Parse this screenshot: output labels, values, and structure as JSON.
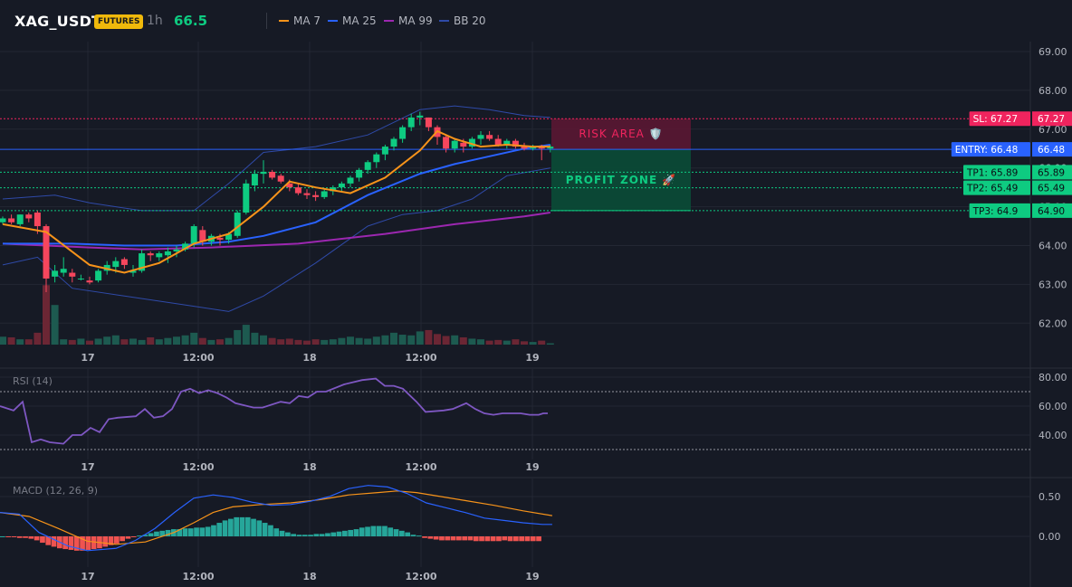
{
  "header": {
    "symbol": "XAG_USDT",
    "badge": "FUTURES",
    "timeframe": "1h",
    "price": "66.5",
    "legend": [
      {
        "label": "MA 7",
        "color": "#f7931a"
      },
      {
        "label": "MA 25",
        "color": "#2962ff"
      },
      {
        "label": "MA 99",
        "color": "#9c27b0"
      },
      {
        "label": "BB 20",
        "color": "#2f4aa8"
      }
    ]
  },
  "colors": {
    "up": "#0ecb81",
    "down": "#f6465d",
    "rsi": "#7e57c2",
    "macd": "#2962ff",
    "signal": "#f7931a",
    "hist_up": "#26a69a",
    "hist_down": "#ef5350",
    "risk": "#f0245e",
    "profit": "#0ecb81",
    "entry": "#2962ff"
  },
  "chart_data": [
    {
      "type": "candlestick",
      "title": "XAG_USDT 1h",
      "ylim": [
        61.6,
        69.2
      ],
      "yticks": [
        "69.00",
        "68.00",
        "67.00",
        "66.00",
        "65.00",
        "64.00",
        "63.00",
        "62.00"
      ],
      "xticks": [
        "17",
        "12:00",
        "18",
        "12:00",
        "19"
      ],
      "ohlc": [
        [
          64.6,
          64.75,
          64.55,
          64.7
        ],
        [
          64.7,
          64.8,
          64.55,
          64.6
        ],
        [
          64.55,
          64.8,
          64.5,
          64.8
        ],
        [
          64.8,
          64.85,
          64.6,
          64.7
        ],
        [
          64.85,
          64.9,
          64.3,
          64.5
        ],
        [
          64.5,
          64.55,
          62.8,
          63.15
        ],
        [
          63.2,
          63.5,
          63.05,
          63.35
        ],
        [
          63.3,
          63.7,
          63.2,
          63.4
        ],
        [
          63.3,
          63.4,
          63.05,
          63.2
        ],
        [
          63.15,
          63.25,
          63.1,
          63.15
        ],
        [
          63.1,
          63.2,
          63.0,
          63.05
        ],
        [
          63.1,
          63.4,
          63.05,
          63.35
        ],
        [
          63.35,
          63.6,
          63.25,
          63.5
        ],
        [
          63.45,
          63.7,
          63.3,
          63.6
        ],
        [
          63.65,
          63.7,
          63.4,
          63.5
        ],
        [
          63.3,
          63.5,
          63.2,
          63.35
        ],
        [
          63.35,
          63.9,
          63.3,
          63.8
        ],
        [
          63.8,
          63.85,
          63.6,
          63.75
        ],
        [
          63.7,
          63.85,
          63.6,
          63.8
        ],
        [
          63.75,
          63.95,
          63.55,
          63.85
        ],
        [
          63.85,
          64.0,
          63.7,
          63.9
        ],
        [
          63.9,
          64.1,
          63.85,
          64.05
        ],
        [
          64.05,
          64.55,
          63.95,
          64.5
        ],
        [
          64.4,
          64.5,
          64.0,
          64.1
        ],
        [
          64.1,
          64.3,
          64.0,
          64.25
        ],
        [
          64.2,
          64.3,
          64.0,
          64.15
        ],
        [
          64.15,
          64.35,
          64.05,
          64.3
        ],
        [
          64.25,
          64.9,
          64.2,
          64.85
        ],
        [
          64.85,
          65.7,
          64.8,
          65.6
        ],
        [
          65.55,
          65.95,
          65.4,
          65.85
        ],
        [
          65.85,
          66.2,
          65.6,
          65.9
        ],
        [
          65.9,
          65.95,
          65.7,
          65.75
        ],
        [
          65.8,
          65.85,
          65.6,
          65.65
        ],
        [
          65.6,
          65.7,
          65.4,
          65.5
        ],
        [
          65.5,
          65.6,
          65.3,
          65.35
        ],
        [
          65.35,
          65.45,
          65.2,
          65.3
        ],
        [
          65.3,
          65.4,
          65.15,
          65.25
        ],
        [
          65.25,
          65.45,
          65.2,
          65.4
        ],
        [
          65.4,
          65.55,
          65.3,
          65.5
        ],
        [
          65.5,
          65.65,
          65.4,
          65.6
        ],
        [
          65.6,
          65.8,
          65.5,
          65.75
        ],
        [
          65.75,
          66.0,
          65.65,
          65.95
        ],
        [
          65.95,
          66.2,
          65.85,
          66.15
        ],
        [
          66.15,
          66.4,
          66.0,
          66.35
        ],
        [
          66.35,
          66.6,
          66.2,
          66.55
        ],
        [
          66.55,
          66.8,
          66.45,
          66.75
        ],
        [
          66.75,
          67.1,
          66.65,
          67.05
        ],
        [
          67.05,
          67.4,
          66.95,
          67.3
        ],
        [
          67.3,
          67.45,
          67.1,
          67.35
        ],
        [
          67.3,
          67.3,
          66.95,
          67.05
        ],
        [
          67.05,
          67.1,
          66.6,
          66.8
        ],
        [
          66.8,
          66.85,
          66.4,
          66.5
        ],
        [
          66.5,
          66.75,
          66.4,
          66.7
        ],
        [
          66.65,
          66.75,
          66.4,
          66.55
        ],
        [
          66.55,
          66.8,
          66.5,
          66.75
        ],
        [
          66.75,
          66.95,
          66.6,
          66.85
        ],
        [
          66.85,
          66.95,
          66.7,
          66.75
        ],
        [
          66.75,
          66.85,
          66.55,
          66.6
        ],
        [
          66.6,
          66.75,
          66.5,
          66.7
        ],
        [
          66.7,
          66.75,
          66.5,
          66.55
        ],
        [
          66.55,
          66.65,
          66.45,
          66.5
        ],
        [
          66.5,
          66.6,
          66.45,
          66.55
        ],
        [
          66.55,
          66.6,
          66.2,
          66.5
        ],
        [
          66.5,
          66.6,
          66.4,
          66.55
        ]
      ],
      "volume": [
        12,
        11,
        8,
        8,
        18,
        90,
        60,
        8,
        7,
        9,
        6,
        9,
        12,
        14,
        8,
        9,
        7,
        11,
        8,
        10,
        12,
        14,
        18,
        10,
        7,
        8,
        10,
        22,
        30,
        18,
        14,
        10,
        8,
        9,
        7,
        6,
        8,
        7,
        8,
        10,
        12,
        10,
        9,
        12,
        14,
        18,
        15,
        14,
        20,
        22,
        16,
        13,
        14,
        11,
        9,
        8,
        6,
        7,
        6,
        8,
        5,
        4,
        6,
        2
      ],
      "ma7": [
        [
          0,
          64.55
        ],
        [
          5,
          64.35
        ],
        [
          10,
          63.5
        ],
        [
          14,
          63.3
        ],
        [
          18,
          63.55
        ],
        [
          22,
          64.05
        ],
        [
          26,
          64.3
        ],
        [
          30,
          65.0
        ],
        [
          33,
          65.65
        ],
        [
          36,
          65.5
        ],
        [
          40,
          65.35
        ],
        [
          44,
          65.75
        ],
        [
          48,
          66.45
        ],
        [
          50,
          66.95
        ],
        [
          52,
          66.75
        ],
        [
          55,
          66.55
        ],
        [
          58,
          66.6
        ],
        [
          61,
          66.55
        ],
        [
          63,
          66.55
        ]
      ],
      "ma25": [
        [
          0,
          64.05
        ],
        [
          8,
          64.05
        ],
        [
          14,
          64.0
        ],
        [
          20,
          64.0
        ],
        [
          26,
          64.1
        ],
        [
          30,
          64.25
        ],
        [
          36,
          64.6
        ],
        [
          42,
          65.3
        ],
        [
          48,
          65.85
        ],
        [
          52,
          66.1
        ],
        [
          56,
          66.3
        ],
        [
          60,
          66.5
        ],
        [
          63,
          66.6
        ]
      ],
      "ma99": [
        [
          0,
          64.05
        ],
        [
          10,
          63.95
        ],
        [
          16,
          63.9
        ],
        [
          24,
          63.95
        ],
        [
          34,
          64.05
        ],
        [
          44,
          64.3
        ],
        [
          52,
          64.55
        ],
        [
          60,
          64.75
        ],
        [
          63,
          64.85
        ]
      ],
      "bb_upper": [
        [
          0,
          65.2
        ],
        [
          6,
          65.3
        ],
        [
          10,
          65.1
        ],
        [
          16,
          64.9
        ],
        [
          22,
          64.9
        ],
        [
          26,
          65.6
        ],
        [
          30,
          66.4
        ],
        [
          36,
          66.55
        ],
        [
          42,
          66.85
        ],
        [
          48,
          67.5
        ],
        [
          52,
          67.6
        ],
        [
          56,
          67.5
        ],
        [
          60,
          67.35
        ],
        [
          63,
          67.3
        ]
      ],
      "bb_lower": [
        [
          0,
          63.5
        ],
        [
          4,
          63.7
        ],
        [
          8,
          62.9
        ],
        [
          14,
          62.7
        ],
        [
          20,
          62.5
        ],
        [
          26,
          62.3
        ],
        [
          30,
          62.7
        ],
        [
          36,
          63.55
        ],
        [
          42,
          64.5
        ],
        [
          46,
          64.8
        ],
        [
          50,
          64.9
        ],
        [
          54,
          65.2
        ],
        [
          58,
          65.8
        ],
        [
          63,
          66.0
        ]
      ],
      "levels": [
        {
          "label": "SL: 67.27",
          "value": 67.27,
          "axis_label": "67.27"
        },
        {
          "label": "ENTRY: 66.48",
          "value": 66.48,
          "axis_label": "66.48"
        },
        {
          "label": "TP1: 65.89",
          "value": 65.89,
          "axis_label": "65.89"
        },
        {
          "label": "TP2: 65.49",
          "value": 65.49,
          "axis_label": "65.49"
        },
        {
          "label": "TP3: 64.9",
          "value": 64.9,
          "axis_label": "64.90"
        }
      ],
      "zones": [
        {
          "label": "RISK AREA 🛡️",
          "from": 67.27,
          "to": 66.48
        },
        {
          "label": "PROFIT ZONE 🚀",
          "from": 66.48,
          "to": 64.9
        }
      ]
    },
    {
      "type": "line",
      "title": "RSI (14)",
      "ylim": [
        30,
        85
      ],
      "yticks": [
        "80.00",
        "60.00",
        "40.00"
      ],
      "bands": [
        70,
        30
      ],
      "xticks": [
        "17",
        "12:00",
        "18",
        "12:00",
        "19"
      ],
      "values": [
        [
          0,
          60
        ],
        [
          3,
          57
        ],
        [
          5,
          63
        ],
        [
          7,
          35
        ],
        [
          9,
          37
        ],
        [
          11,
          35
        ],
        [
          14,
          34
        ],
        [
          16,
          40
        ],
        [
          18,
          40
        ],
        [
          20,
          45
        ],
        [
          22,
          42
        ],
        [
          24,
          51
        ],
        [
          26,
          52
        ],
        [
          30,
          53
        ],
        [
          32,
          58
        ],
        [
          34,
          52
        ],
        [
          36,
          53
        ],
        [
          38,
          58
        ],
        [
          40,
          70
        ],
        [
          42,
          72
        ],
        [
          44,
          69
        ],
        [
          46,
          71
        ],
        [
          48,
          69
        ],
        [
          50,
          66
        ],
        [
          52,
          62
        ],
        [
          56,
          59
        ],
        [
          58,
          59
        ],
        [
          62,
          63
        ],
        [
          64,
          62
        ],
        [
          66,
          67
        ],
        [
          68,
          66
        ],
        [
          70,
          70
        ],
        [
          72,
          70
        ],
        [
          76,
          75
        ],
        [
          80,
          78
        ],
        [
          83,
          79
        ],
        [
          85,
          74
        ],
        [
          87,
          74
        ],
        [
          89,
          72
        ],
        [
          92,
          63
        ],
        [
          94,
          56
        ],
        [
          98,
          57
        ],
        [
          100,
          58
        ],
        [
          103,
          62
        ],
        [
          105,
          58
        ],
        [
          107,
          55
        ],
        [
          109,
          54
        ],
        [
          111,
          55
        ],
        [
          113,
          55
        ],
        [
          115,
          55
        ],
        [
          117,
          54
        ],
        [
          119,
          54
        ],
        [
          120,
          55
        ],
        [
          121,
          55
        ]
      ]
    },
    {
      "type": "bar",
      "title": "MACD (12, 26, 9)",
      "ylim": [
        -0.22,
        0.62
      ],
      "yticks": [
        "0.50",
        "0.00"
      ],
      "xticks": [
        "17",
        "12:00",
        "18",
        "12:00",
        "19"
      ],
      "histogram": [
        0.0,
        -0.01,
        -0.01,
        -0.02,
        -0.02,
        -0.03,
        -0.05,
        -0.08,
        -0.11,
        -0.13,
        -0.15,
        -0.16,
        -0.17,
        -0.18,
        -0.18,
        -0.17,
        -0.16,
        -0.15,
        -0.13,
        -0.11,
        -0.09,
        -0.06,
        -0.03,
        -0.01,
        0.01,
        0.02,
        0.04,
        0.06,
        0.07,
        0.08,
        0.09,
        0.09,
        0.1,
        0.1,
        0.11,
        0.11,
        0.12,
        0.14,
        0.17,
        0.2,
        0.22,
        0.24,
        0.24,
        0.24,
        0.22,
        0.2,
        0.17,
        0.14,
        0.1,
        0.07,
        0.05,
        0.03,
        0.02,
        0.02,
        0.02,
        0.03,
        0.03,
        0.04,
        0.05,
        0.06,
        0.07,
        0.08,
        0.09,
        0.11,
        0.12,
        0.13,
        0.13,
        0.13,
        0.11,
        0.09,
        0.07,
        0.05,
        0.02,
        0.01,
        -0.02,
        -0.03,
        -0.04,
        -0.05,
        -0.05,
        -0.05,
        -0.05,
        -0.05,
        -0.05,
        -0.06,
        -0.06,
        -0.06,
        -0.06,
        -0.06,
        -0.05,
        -0.06,
        -0.06,
        -0.06,
        -0.06,
        -0.06,
        -0.06
      ],
      "macd": [
        [
          0,
          0.3
        ],
        [
          4,
          0.28
        ],
        [
          8,
          0.05
        ],
        [
          14,
          -0.12
        ],
        [
          18,
          -0.18
        ],
        [
          24,
          -0.15
        ],
        [
          28,
          -0.05
        ],
        [
          32,
          0.1
        ],
        [
          36,
          0.3
        ],
        [
          40,
          0.48
        ],
        [
          44,
          0.52
        ],
        [
          48,
          0.49
        ],
        [
          52,
          0.43
        ],
        [
          56,
          0.39
        ],
        [
          60,
          0.4
        ],
        [
          64,
          0.44
        ],
        [
          68,
          0.5
        ],
        [
          72,
          0.6
        ],
        [
          76,
          0.64
        ],
        [
          80,
          0.62
        ],
        [
          84,
          0.54
        ],
        [
          88,
          0.42
        ],
        [
          92,
          0.36
        ],
        [
          96,
          0.3
        ],
        [
          100,
          0.23
        ],
        [
          104,
          0.2
        ],
        [
          108,
          0.17
        ],
        [
          112,
          0.15
        ],
        [
          114,
          0.15
        ]
      ],
      "signal": [
        [
          0,
          0.3
        ],
        [
          6,
          0.25
        ],
        [
          12,
          0.1
        ],
        [
          18,
          -0.06
        ],
        [
          24,
          -0.1
        ],
        [
          30,
          -0.07
        ],
        [
          36,
          0.05
        ],
        [
          40,
          0.17
        ],
        [
          44,
          0.3
        ],
        [
          48,
          0.37
        ],
        [
          54,
          0.4
        ],
        [
          60,
          0.42
        ],
        [
          66,
          0.46
        ],
        [
          72,
          0.52
        ],
        [
          78,
          0.55
        ],
        [
          82,
          0.57
        ],
        [
          86,
          0.55
        ],
        [
          90,
          0.51
        ],
        [
          96,
          0.45
        ],
        [
          102,
          0.39
        ],
        [
          108,
          0.32
        ],
        [
          114,
          0.26
        ]
      ]
    }
  ]
}
